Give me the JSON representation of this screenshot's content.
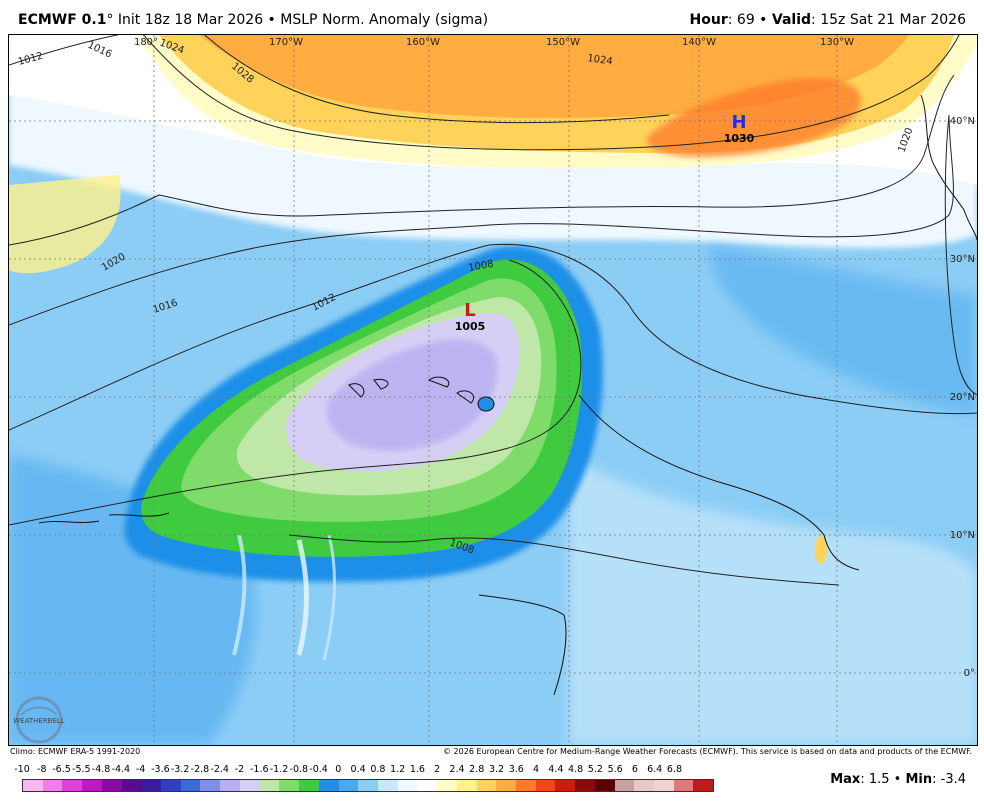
{
  "header": {
    "model": "ECMWF 0.1",
    "degree": "°",
    "init": " Init 18z 18 Mar 2026",
    "bullet": " • ",
    "field": "MSLP Norm. Anomaly (sigma)",
    "hour_label": "Hour",
    "hour_value": ": 69",
    "valid_label": "Valid",
    "valid_value": ": 15z Sat 21 Mar 2026"
  },
  "map": {
    "lon_labels": [
      "180°",
      "170°W",
      "160°W",
      "150°W",
      "140°W",
      "130°W"
    ],
    "lat_labels": [
      "40°N",
      "30°N",
      "20°N",
      "10°N",
      "0°"
    ],
    "high": {
      "symbol": "H",
      "value": "1030",
      "color": "#1a2cff"
    },
    "low": {
      "symbol": "L",
      "value": "1005",
      "color": "#e01010"
    },
    "isobar_labels": [
      "1016",
      "1024",
      "1012",
      "1028",
      "1024",
      "1020",
      "1020",
      "1016",
      "1012",
      "1008",
      "1008"
    ],
    "logo_text": "WEATHERBELL"
  },
  "credits": {
    "left": "Climo: ECMWF ERA-5 1991-2020",
    "right": "© 2026 European Centre for Medium-Range Weather Forecasts (ECMWF). This service is based on data and products of the ECMWF."
  },
  "legend": {
    "ticks": [
      "-10",
      "-8",
      "-6.5",
      "-5.5",
      "-4.8",
      "-4.4",
      "-4",
      "-3.6",
      "-3.2",
      "-2.8",
      "-2.4",
      "-2",
      "-1.6",
      "-1.2",
      "-0.8",
      "-0.4",
      "0",
      "0.4",
      "0.8",
      "1.2",
      "1.6",
      "2",
      "2.4",
      "2.8",
      "3.2",
      "3.6",
      "4",
      "4.4",
      "4.8",
      "5.2",
      "5.6",
      "6",
      "6.4",
      "6.8"
    ],
    "colors": [
      "#f7b8f0",
      "#ee7fe6",
      "#e23fd9",
      "#c018c4",
      "#8e0aa6",
      "#5b0a8e",
      "#3b1aa0",
      "#2e3fc4",
      "#3a6ad8",
      "#7f8ee6",
      "#b8b0f0",
      "#d6cff5",
      "#bfe8a8",
      "#7fdc6a",
      "#3fca3f",
      "#1f8fe8",
      "#4aa8f0",
      "#8ccdf5",
      "#c9e8fb",
      "#eef8fe",
      "#ffffff",
      "#fffcc8",
      "#fff28a",
      "#ffd25a",
      "#ffad40",
      "#ff7a2a",
      "#f2461a",
      "#c8200e",
      "#8e0a0a",
      "#5a0000",
      "#c8a0a0",
      "#e6c8c8",
      "#f2d2d2",
      "#e07a7a",
      "#c01a1a"
    ]
  },
  "stats": {
    "max_label": "Max",
    "max_value": ": 1.5",
    "bullet": " • ",
    "min_label": "Min",
    "min_value": ": -3.4"
  }
}
